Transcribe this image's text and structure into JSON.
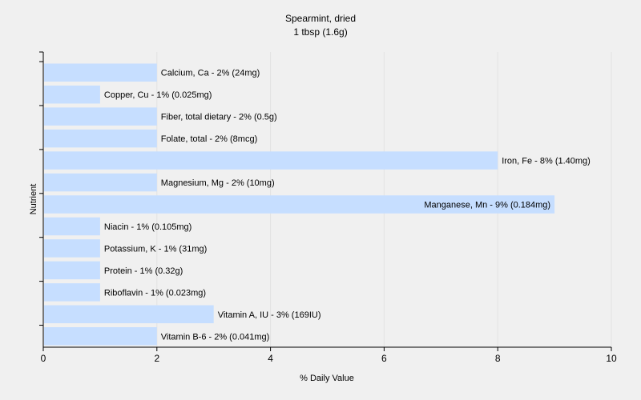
{
  "chart_data": {
    "type": "bar",
    "orientation": "horizontal",
    "title": "Spearmint, dried",
    "subtitle": "1 tbsp (1.6g)",
    "xlabel": "% Daily Value",
    "ylabel": "Nutrient",
    "xlim": [
      0,
      10
    ],
    "xticks": [
      0,
      2,
      4,
      6,
      8,
      10
    ],
    "grid": true,
    "bar_color": "#c6deff",
    "categories": [
      "Calcium, Ca",
      "Copper, Cu",
      "Fiber, total dietary",
      "Folate, total",
      "Iron, Fe",
      "Magnesium, Mg",
      "Manganese, Mn",
      "Niacin",
      "Potassium, K",
      "Protein",
      "Riboflavin",
      "Vitamin A, IU",
      "Vitamin B-6"
    ],
    "values": [
      2,
      1,
      2,
      2,
      8,
      2,
      9,
      1,
      1,
      1,
      1,
      3,
      2
    ],
    "labels": [
      "Calcium, Ca - 2% (24mg)",
      "Copper, Cu - 1% (0.025mg)",
      "Fiber, total dietary - 2% (0.5g)",
      "Folate, total - 2% (8mcg)",
      "Iron, Fe - 8% (1.40mg)",
      "Magnesium, Mg - 2% (10mg)",
      "Manganese, Mn - 9% (0.184mg)",
      "Niacin - 1% (0.105mg)",
      "Potassium, K - 1% (31mg)",
      "Protein - 1% (0.32g)",
      "Riboflavin - 1% (0.023mg)",
      "Vitamin A, IU - 3% (169IU)",
      "Vitamin B-6 - 2% (0.041mg)"
    ],
    "label_inside": [
      false,
      false,
      false,
      false,
      false,
      false,
      true,
      false,
      false,
      false,
      false,
      false,
      false
    ]
  }
}
